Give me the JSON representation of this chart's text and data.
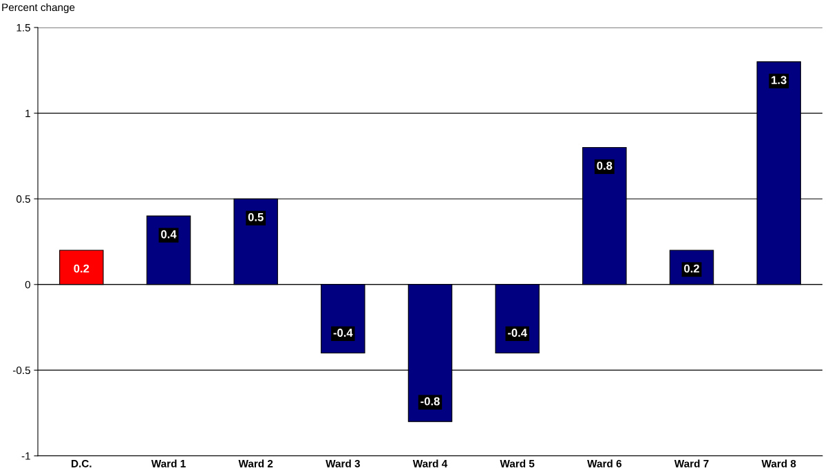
{
  "chart_data": {
    "type": "bar",
    "ylabel": "Percent change",
    "categories": [
      "D.C.",
      "Ward 1",
      "Ward 2",
      "Ward 3",
      "Ward 4",
      "Ward 5",
      "Ward 6",
      "Ward 7",
      "Ward 8"
    ],
    "values": [
      0.2,
      0.4,
      0.5,
      -0.4,
      -0.8,
      -0.4,
      0.8,
      0.2,
      1.3
    ],
    "colors": [
      "#ff0000",
      "#000080",
      "#000080",
      "#000080",
      "#000080",
      "#000080",
      "#000080",
      "#000080",
      "#000080"
    ],
    "ylim": [
      -1,
      1.5
    ],
    "yticks": [
      -1,
      -0.5,
      0,
      0.5,
      1,
      1.5
    ],
    "grid": "y",
    "data_labels": true
  }
}
